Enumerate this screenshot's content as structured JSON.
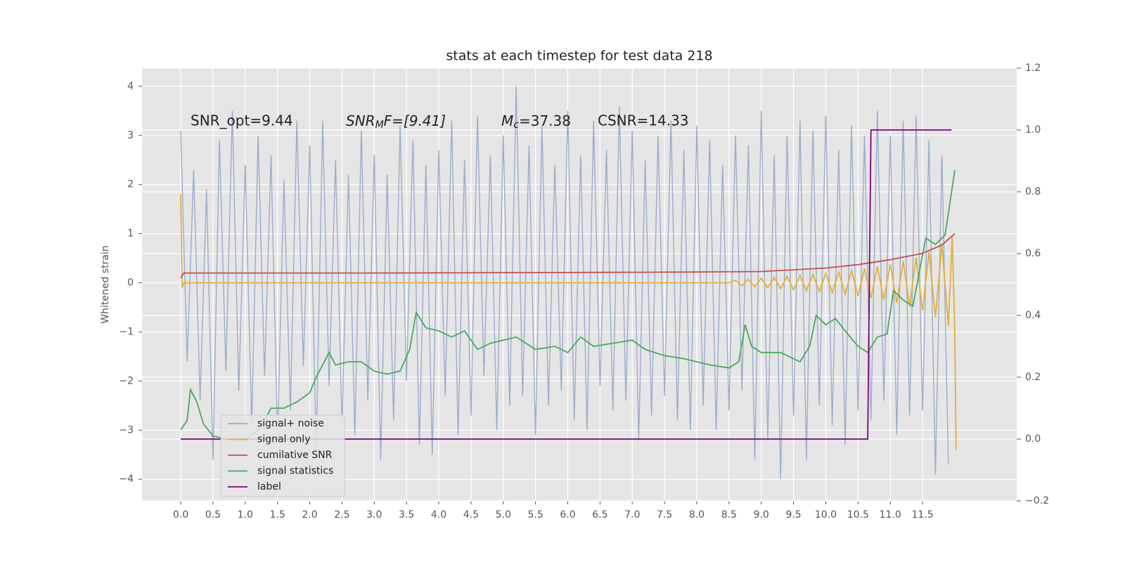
{
  "chart_data": {
    "type": "line",
    "title": "stats at each timestep for test data 218",
    "y_label": "Whitened strain",
    "annotations": [
      "SNR_opt=9.44",
      {
        "base": "SNR",
        "sub": "M",
        "rest": "F=[9.41]"
      },
      {
        "base": "M",
        "sub": "c",
        "rest": "=37.38"
      },
      "CSNR=14.33"
    ],
    "xlim": [
      -0.6,
      12.96
    ],
    "ylim": [
      -4.44,
      4.37
    ],
    "y2lim": [
      -0.2,
      1.2
    ],
    "xticks": [
      {
        "value": 0,
        "label": "0.0"
      },
      0.5,
      {
        "value": 1,
        "label": "1.0"
      },
      1.5,
      {
        "value": 2,
        "label": "2.0"
      },
      2.5,
      {
        "value": 3,
        "label": "3.0"
      },
      3.5,
      {
        "value": 4,
        "label": "4.0"
      },
      4.5,
      {
        "value": 5,
        "label": "5.0"
      },
      5.5,
      {
        "value": 6,
        "label": "6.0"
      },
      6.5,
      {
        "value": 7,
        "label": "7.0"
      },
      7.5,
      {
        "value": 8,
        "label": "8.0"
      },
      8.5,
      {
        "value": 9,
        "label": "9.0"
      },
      9.5,
      {
        "value": 10,
        "label": "10.0"
      },
      10.5,
      {
        "value": 11,
        "label": "11.0"
      },
      11.5
    ],
    "yticks": [
      {
        "value": -4,
        "label": "−4"
      },
      {
        "value": -3,
        "label": "−3"
      },
      {
        "value": -2,
        "label": "−2"
      },
      {
        "value": -1,
        "label": "−1"
      },
      0,
      1,
      2,
      3,
      4
    ],
    "y2ticks": [
      {
        "value": -0.2,
        "label": "−0.2"
      },
      {
        "value": 0,
        "label": "0.0"
      },
      0.2,
      0.4,
      0.6,
      0.8,
      {
        "value": 1,
        "label": "1.0"
      },
      1.2
    ],
    "grid": true,
    "legend": "lower left",
    "series": [
      {
        "name": "signal+ noise",
        "color": "#97a9cc",
        "x": [
          0.0,
          0.1,
          0.2,
          0.3,
          0.4,
          0.5,
          0.6,
          0.7,
          0.8,
          0.9,
          1.0,
          1.1,
          1.2,
          1.3,
          1.4,
          1.5,
          1.6,
          1.7,
          1.8,
          1.9,
          2.0,
          2.1,
          2.2,
          2.3,
          2.4,
          2.5,
          2.6,
          2.7,
          2.8,
          2.9,
          3.0,
          3.1,
          3.2,
          3.3,
          3.4,
          3.5,
          3.6,
          3.7,
          3.8,
          3.9,
          4.0,
          4.1,
          4.2,
          4.3,
          4.4,
          4.5,
          4.6,
          4.7,
          4.8,
          4.9,
          5.0,
          5.1,
          5.2,
          5.3,
          5.4,
          5.5,
          5.6,
          5.7,
          5.8,
          5.9,
          6.0,
          6.1,
          6.2,
          6.3,
          6.4,
          6.5,
          6.6,
          6.7,
          6.8,
          6.9,
          7.0,
          7.1,
          7.2,
          7.3,
          7.4,
          7.5,
          7.6,
          7.7,
          7.8,
          7.9,
          8.0,
          8.1,
          8.2,
          8.3,
          8.4,
          8.5,
          8.6,
          8.7,
          8.8,
          8.9,
          9.0,
          9.1,
          9.2,
          9.3,
          9.4,
          9.5,
          9.6,
          9.7,
          9.8,
          9.9,
          10.0,
          10.1,
          10.2,
          10.3,
          10.4,
          10.5,
          10.6,
          10.7,
          10.8,
          10.9,
          11.0,
          11.1,
          11.2,
          11.3,
          11.4,
          11.5,
          11.6,
          11.7,
          11.8,
          11.9
        ],
        "values": [
          3.1,
          -1.6,
          2.3,
          -2.4,
          1.9,
          -3.6,
          2.9,
          -1.8,
          3.5,
          -2.2,
          2.4,
          -2.9,
          3.0,
          -1.9,
          2.6,
          -3.2,
          2.1,
          -2.6,
          3.3,
          -1.7,
          2.8,
          -3.4,
          3.3,
          -2.1,
          2.5,
          -2.9,
          2.2,
          -3.1,
          3.1,
          -2.4,
          2.6,
          -3.6,
          2.2,
          -2.8,
          3.2,
          -2.0,
          2.9,
          -3.3,
          2.4,
          -3.5,
          2.7,
          -2.3,
          3.3,
          -3.1,
          2.5,
          -2.7,
          3.4,
          -1.9,
          2.6,
          -3.0,
          3.0,
          -2.5,
          4.0,
          -2.3,
          2.8,
          -3.1,
          3.2,
          -2.5,
          2.4,
          -2.2,
          3.5,
          -2.8,
          2.6,
          -3.0,
          3.3,
          -2.1,
          2.7,
          -2.6,
          3.6,
          -2.4,
          3.1,
          -3.2,
          2.5,
          -2.7,
          3.0,
          -2.3,
          3.3,
          -2.8,
          2.7,
          -3.0,
          3.2,
          -2.5,
          2.9,
          -3.0,
          2.4,
          -2.6,
          3.0,
          -2.2,
          2.8,
          -3.6,
          3.5,
          -3.2,
          2.6,
          -4.0,
          3.0,
          -2.7,
          3.3,
          -3.6,
          3.1,
          -2.5,
          3.4,
          -2.9,
          2.7,
          -3.3,
          3.2,
          -2.6,
          3.0,
          -2.8,
          3.5,
          -2.4,
          3.0,
          -3.1,
          3.3,
          -2.7,
          3.4,
          -2.6,
          2.9,
          -3.9,
          2.6,
          -3.7
        ]
      },
      {
        "name": "signal only",
        "color": "#e5ae38",
        "x": [
          0.0,
          0.02,
          0.05,
          8.5,
          8.6,
          8.7,
          8.8,
          8.9,
          9.0,
          9.1,
          9.2,
          9.3,
          9.4,
          9.5,
          9.6,
          9.7,
          9.8,
          9.9,
          10.0,
          10.1,
          10.2,
          10.3,
          10.4,
          10.5,
          10.6,
          10.7,
          10.8,
          10.9,
          11.0,
          11.1,
          11.2,
          11.3,
          11.4,
          11.5,
          11.6,
          11.7,
          11.8,
          11.9,
          11.96,
          12.0,
          12.02
        ],
        "values": [
          1.8,
          -0.1,
          0.0,
          0.0,
          0.05,
          -0.06,
          0.07,
          -0.08,
          0.09,
          -0.1,
          0.11,
          -0.12,
          0.13,
          -0.14,
          0.15,
          -0.16,
          0.17,
          -0.18,
          0.19,
          -0.2,
          0.22,
          -0.23,
          0.25,
          -0.27,
          0.29,
          -0.31,
          0.33,
          -0.35,
          0.38,
          -0.41,
          0.44,
          -0.48,
          0.52,
          -0.57,
          0.63,
          -0.7,
          0.78,
          -0.88,
          0.95,
          -1.0,
          -3.4
        ]
      },
      {
        "name": "cumilative SNR",
        "color": "#c44e52",
        "x": [
          0.0,
          0.05,
          3.0,
          6.0,
          8.0,
          9.0,
          10.0,
          10.5,
          11.0,
          11.5,
          11.8,
          12.0
        ],
        "values": [
          0.1,
          0.2,
          0.2,
          0.21,
          0.22,
          0.23,
          0.3,
          0.37,
          0.47,
          0.6,
          0.77,
          1.0
        ]
      },
      {
        "name": "signal statistics",
        "color": "#4aa85c",
        "axis": "y2",
        "x": [
          0.0,
          0.1,
          0.15,
          0.25,
          0.35,
          0.5,
          0.7,
          1.0,
          1.2,
          1.3,
          1.4,
          1.6,
          1.8,
          2.0,
          2.1,
          2.2,
          2.3,
          2.4,
          2.6,
          2.8,
          3.0,
          3.2,
          3.4,
          3.55,
          3.65,
          3.8,
          4.0,
          4.2,
          4.4,
          4.6,
          4.8,
          5.0,
          5.2,
          5.5,
          5.8,
          6.0,
          6.2,
          6.4,
          6.7,
          7.0,
          7.2,
          7.5,
          7.8,
          8.2,
          8.5,
          8.65,
          8.75,
          8.85,
          9.0,
          9.3,
          9.6,
          9.75,
          9.85,
          10.0,
          10.15,
          10.3,
          10.5,
          10.65,
          10.8,
          10.95,
          11.05,
          11.2,
          11.35,
          11.55,
          11.7,
          11.85,
          12.0
        ],
        "values": [
          0.03,
          0.06,
          0.16,
          0.12,
          0.05,
          0.01,
          0.0,
          0.0,
          0.03,
          0.06,
          0.1,
          0.1,
          0.12,
          0.15,
          0.2,
          0.24,
          0.28,
          0.24,
          0.25,
          0.25,
          0.22,
          0.21,
          0.22,
          0.29,
          0.41,
          0.36,
          0.35,
          0.33,
          0.35,
          0.29,
          0.31,
          0.32,
          0.33,
          0.29,
          0.3,
          0.28,
          0.33,
          0.3,
          0.31,
          0.32,
          0.29,
          0.27,
          0.26,
          0.24,
          0.23,
          0.25,
          0.37,
          0.3,
          0.28,
          0.28,
          0.25,
          0.3,
          0.4,
          0.37,
          0.39,
          0.35,
          0.3,
          0.28,
          0.33,
          0.34,
          0.48,
          0.45,
          0.43,
          0.65,
          0.63,
          0.66,
          0.87
        ]
      },
      {
        "name": "label",
        "color": "#800080",
        "axis": "y2",
        "x": [
          0.0,
          10.65,
          10.7,
          11.95
        ],
        "values": [
          0,
          0,
          1,
          1
        ]
      }
    ]
  }
}
